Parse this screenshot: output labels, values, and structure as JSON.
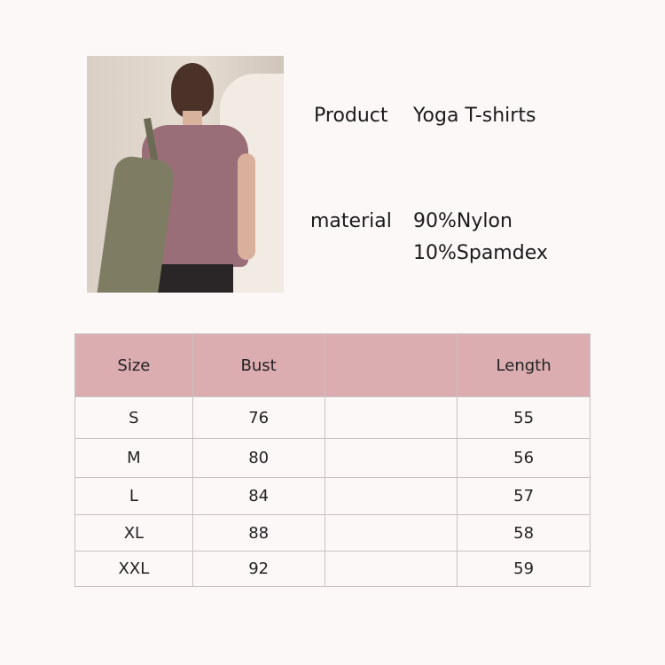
{
  "product": {
    "label": "Product",
    "value": "Yoga T-shirts"
  },
  "material": {
    "label": "material",
    "lines": [
      "90%Nylon",
      "10%Spamdex"
    ]
  },
  "colors": {
    "header": "#dcadb0",
    "background": "#fdf8f8",
    "border": "#c9c0c0"
  },
  "table": {
    "headers": [
      "Size",
      "Bust",
      "",
      "Length"
    ],
    "rows": [
      [
        "S",
        "76",
        "",
        "55"
      ],
      [
        "M",
        "80",
        "",
        "56"
      ],
      [
        "L",
        "84",
        "",
        "57"
      ],
      [
        "XL",
        "88",
        "",
        "58"
      ],
      [
        "XXL",
        "92",
        "",
        "59"
      ]
    ]
  }
}
